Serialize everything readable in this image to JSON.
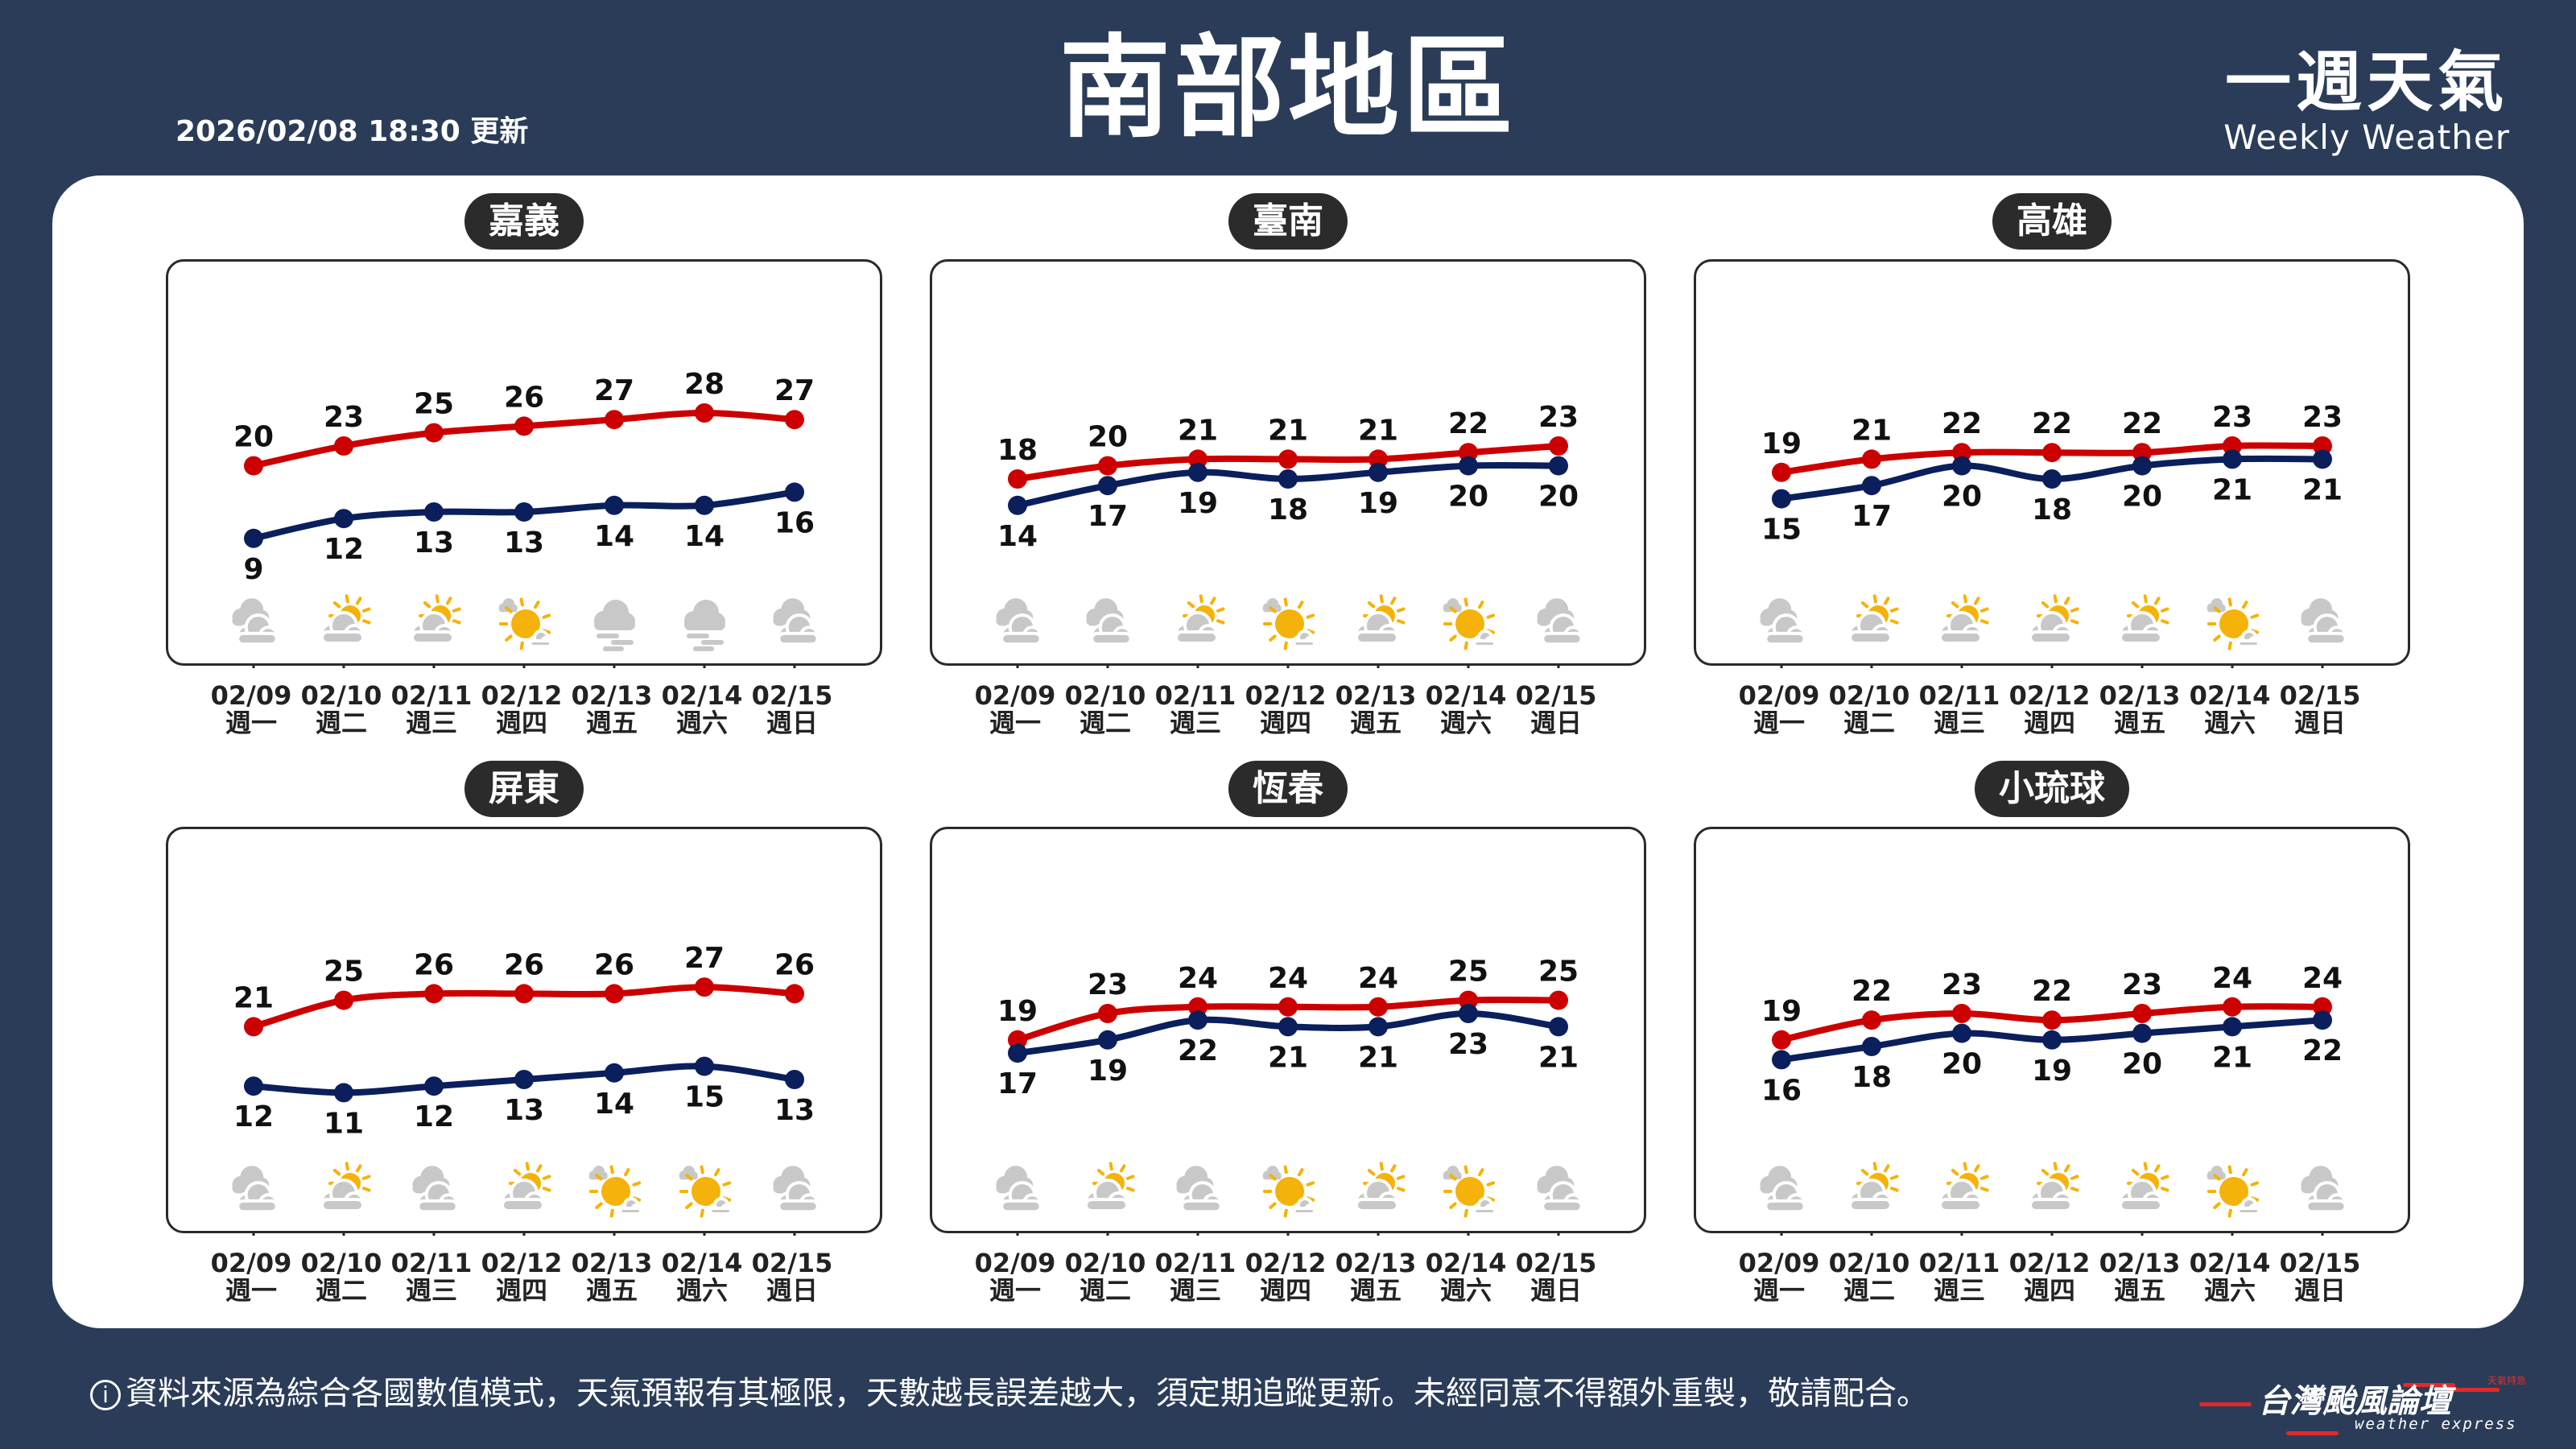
{
  "header": {
    "title": "南部地區",
    "updated": "2026/02/08 18:30 更新",
    "brand_zh": "一週天氣",
    "brand_en": "Weekly Weather"
  },
  "days": [
    {
      "date": "02/09",
      "weekday": "週一"
    },
    {
      "date": "02/10",
      "weekday": "週二"
    },
    {
      "date": "02/11",
      "weekday": "週三"
    },
    {
      "date": "02/12",
      "weekday": "週四"
    },
    {
      "date": "02/13",
      "weekday": "週五"
    },
    {
      "date": "02/14",
      "weekday": "週六"
    },
    {
      "date": "02/15",
      "weekday": "週日"
    }
  ],
  "colors": {
    "high": "#cc0000",
    "low": "#0a1f5c",
    "background": "#2a3c58",
    "sun": "#f5b20a",
    "cloud": "#c8c8c8"
  },
  "locations": [
    {
      "name": "嘉義",
      "high": [
        20,
        23,
        25,
        26,
        27,
        28,
        27
      ],
      "low": [
        9,
        12,
        13,
        13,
        14,
        14,
        16
      ],
      "icons": [
        "cloudy",
        "partly-cloudy",
        "partly-cloudy",
        "mostly-sunny",
        "foggy",
        "foggy",
        "cloudy"
      ]
    },
    {
      "name": "臺南",
      "high": [
        18,
        20,
        21,
        21,
        21,
        22,
        23
      ],
      "low": [
        14,
        17,
        19,
        18,
        19,
        20,
        20
      ],
      "icons": [
        "cloudy",
        "cloudy",
        "partly-cloudy",
        "mostly-sunny",
        "partly-cloudy",
        "mostly-sunny",
        "cloudy"
      ]
    },
    {
      "name": "高雄",
      "high": [
        19,
        21,
        22,
        22,
        22,
        23,
        23
      ],
      "low": [
        15,
        17,
        20,
        18,
        20,
        21,
        21
      ],
      "icons": [
        "cloudy",
        "partly-cloudy",
        "partly-cloudy",
        "partly-cloudy",
        "partly-cloudy",
        "mostly-sunny",
        "cloudy"
      ]
    },
    {
      "name": "屏東",
      "high": [
        21,
        25,
        26,
        26,
        26,
        27,
        26
      ],
      "low": [
        12,
        11,
        12,
        13,
        14,
        15,
        13
      ],
      "icons": [
        "cloudy",
        "partly-cloudy",
        "cloudy",
        "partly-cloudy",
        "mostly-sunny",
        "mostly-sunny",
        "cloudy"
      ]
    },
    {
      "name": "恆春",
      "high": [
        19,
        23,
        24,
        24,
        24,
        25,
        25
      ],
      "low": [
        17,
        19,
        22,
        21,
        21,
        23,
        21
      ],
      "icons": [
        "cloudy",
        "partly-cloudy",
        "cloudy",
        "mostly-sunny",
        "partly-cloudy",
        "mostly-sunny",
        "cloudy"
      ]
    },
    {
      "name": "小琉球",
      "high": [
        19,
        22,
        23,
        22,
        23,
        24,
        24
      ],
      "low": [
        16,
        18,
        20,
        19,
        20,
        21,
        22
      ],
      "icons": [
        "cloudy",
        "partly-cloudy",
        "partly-cloudy",
        "partly-cloudy",
        "partly-cloudy",
        "mostly-sunny",
        "cloudy"
      ]
    }
  ],
  "footer": {
    "info_icon": "i",
    "disclaimer": "資料來源為綜合各國數值模式，天氣預報有其極限，天數越長誤差越大，須定期追蹤更新。未經同意不得額外重製，敬請配合。",
    "logo_zh": "台灣颱風論壇",
    "logo_en": "weather express",
    "logo_tag": "天氣特急"
  }
}
